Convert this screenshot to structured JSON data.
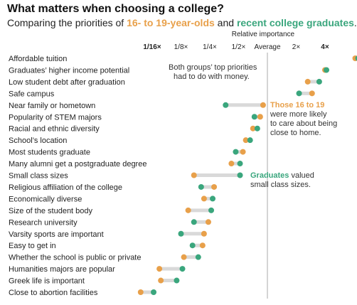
{
  "title": "What matters when choosing a college?",
  "subtitle": {
    "prefix": "Comparing the priorities of ",
    "group_a": "16- to 19-year-olds",
    "connector": " and ",
    "group_b": "recent college graduates",
    "suffix": "."
  },
  "colors": {
    "group_a": "#e8a04a",
    "group_b": "#3aa67d",
    "connector": "#d9d9d9",
    "reference": "#aaaaaa"
  },
  "chart_data": {
    "type": "dot-plot",
    "x_axis_title": "Relative importance",
    "scale": "log2",
    "xlim": [
      -4.6,
      3.4
    ],
    "ticks": [
      {
        "value": -4,
        "label": "1/16×",
        "bold": true
      },
      {
        "value": -3,
        "label": "1/8×",
        "bold": false
      },
      {
        "value": -2,
        "label": "1/4×",
        "bold": false
      },
      {
        "value": -1,
        "label": "1/2×",
        "bold": false
      },
      {
        "value": 0,
        "label": "Average",
        "bold": false
      },
      {
        "value": 1,
        "label": "2×",
        "bold": false
      },
      {
        "value": 2,
        "label": "4×",
        "bold": true
      }
    ],
    "series": [
      {
        "name": "16- to 19-year-olds",
        "key": "a"
      },
      {
        "name": "recent college graduates",
        "key": "b"
      }
    ],
    "rows": [
      {
        "label": "Affordable tuition",
        "a": 3.05,
        "b": 3.15
      },
      {
        "label": "Graduates’ higher income potential",
        "a": 2.0,
        "b": 2.05
      },
      {
        "label": "Low student debt after graduation",
        "a": 1.4,
        "b": 1.8
      },
      {
        "label": "Safe campus",
        "a": 1.55,
        "b": 1.1
      },
      {
        "label": "Near family or hometown",
        "a": -0.15,
        "b": -1.45
      },
      {
        "label": "Popularity of STEM majors",
        "a": -0.25,
        "b": -0.45
      },
      {
        "label": "Racial and ethnic diversity",
        "a": -0.5,
        "b": -0.35
      },
      {
        "label": "School’s location",
        "a": -0.75,
        "b": -0.6
      },
      {
        "label": "Most students graduate",
        "a": -0.85,
        "b": -1.1
      },
      {
        "label": "Many alumni get a postgraduate degree",
        "a": -1.25,
        "b": -0.95
      },
      {
        "label": "Small class sizes",
        "a": -2.55,
        "b": -0.95
      },
      {
        "label": "Religious affiliation of the college",
        "a": -1.85,
        "b": -2.3
      },
      {
        "label": "Economically diverse",
        "a": -2.2,
        "b": -1.9
      },
      {
        "label": "Size of the student body",
        "a": -2.75,
        "b": -1.95
      },
      {
        "label": "Research university",
        "a": -2.05,
        "b": -2.55
      },
      {
        "label": "Varsity sports are important",
        "a": -2.2,
        "b": -3.0
      },
      {
        "label": "Easy to get in",
        "a": -2.25,
        "b": -2.6
      },
      {
        "label": "Whether the school is public or private",
        "a": -2.9,
        "b": -2.4
      },
      {
        "label": "Humanities majors are popular",
        "a": -3.75,
        "b": -2.95
      },
      {
        "label": "Greek life is important",
        "a": -3.7,
        "b": -3.15
      },
      {
        "label": "Close to abortion facilities",
        "a": -4.4,
        "b": -3.95
      }
    ],
    "annotations": [
      {
        "lines": [
          "Both groups’ top priorities",
          "had to do with money."
        ]
      },
      {
        "lead": "Those 16 to 19",
        "lines": [
          "were more likely",
          "to care about being",
          "close to home."
        ]
      },
      {
        "lead": "Graduates",
        "lead_rest": " valued",
        "lines": [
          "small class sizes."
        ]
      }
    ]
  }
}
